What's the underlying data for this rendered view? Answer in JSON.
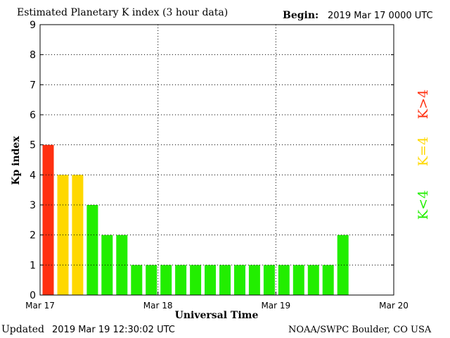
{
  "header": {
    "title": "Estimated Planetary K index (3 hour data)",
    "begin_label": "Begin:",
    "begin_value": "2019 Mar 17 0000 UTC"
  },
  "footer": {
    "updated_label": "Updated",
    "updated_value": "2019 Mar 19 12:30:02 UTC",
    "credit": "NOAA/SWPC Boulder, CO USA"
  },
  "legend": {
    "gt4": "K>4",
    "eq4": "K=4",
    "lt4": "K<4"
  },
  "colors": {
    "gt4": "#ff3010",
    "eq4": "#ffd800",
    "lt4": "#22ee00",
    "grid": "#000000"
  },
  "chart_data": {
    "type": "bar",
    "ylabel": "Kp index",
    "xlabel": "Universal Time",
    "ylim": [
      0,
      9
    ],
    "yticks": [
      "0",
      "1",
      "2",
      "3",
      "4",
      "5",
      "6",
      "7",
      "8",
      "9"
    ],
    "xticks": [
      "Mar 17",
      "Mar 18",
      "Mar 19",
      "Mar 20"
    ],
    "slots_total": 24,
    "grid": true,
    "values": [
      5,
      4,
      4,
      3,
      2,
      2,
      1,
      1,
      1,
      1,
      1,
      1,
      1,
      1,
      1,
      1,
      1,
      1,
      1,
      1,
      2
    ]
  }
}
